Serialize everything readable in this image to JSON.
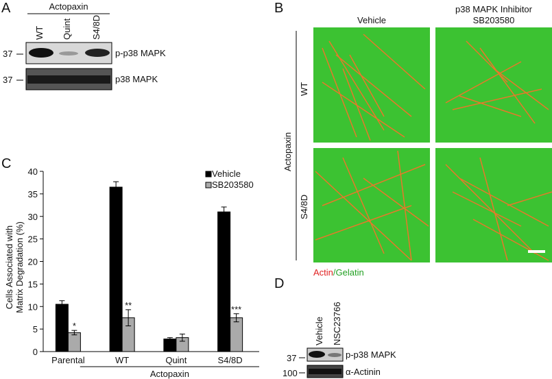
{
  "panel_a": {
    "label": "A",
    "group": "Actopaxin",
    "lanes": [
      "WT",
      "Quint",
      "S4/8D"
    ],
    "rows": [
      {
        "marker": "37",
        "name": "p-p38 MAPK"
      },
      {
        "marker": "37",
        "name": "p38 MAPK"
      }
    ]
  },
  "panel_b": {
    "label": "B",
    "columns": [
      [
        "Vehicle"
      ],
      [
        "p38 MAPK Inhibitor",
        "SB203580"
      ]
    ],
    "rows": [
      "WT",
      "S4/8D"
    ],
    "group": "Actopaxin",
    "legend": [
      "Actin",
      "/Gelatin"
    ]
  },
  "panel_c": {
    "label": "C"
  },
  "panel_d": {
    "label": "D",
    "lanes": [
      "Vehicle",
      "NSC23766"
    ],
    "rows": [
      {
        "marker": "37",
        "name": "p-p38 MAPK"
      },
      {
        "marker": "100",
        "name": "α-Actinin"
      }
    ]
  },
  "chart_data": {
    "type": "bar",
    "ylabel": [
      "Cells Associated with",
      "Matrix Degradation (%)"
    ],
    "categories": [
      "Parental",
      "WT",
      "Quint",
      "S4/8D"
    ],
    "group_label": "Actopaxin",
    "series": [
      {
        "name": "Vehicle",
        "color": "#000000",
        "values": [
          10.5,
          36.5,
          2.8,
          31
        ],
        "errors": [
          0.8,
          1.2,
          0.3,
          1.1
        ],
        "annotations": [
          null,
          null,
          null,
          null
        ]
      },
      {
        "name": "SB203580",
        "color": "#aaaaaa",
        "values": [
          4.2,
          7.5,
          3.1,
          7.5
        ],
        "errors": [
          0.5,
          1.8,
          0.8,
          0.9
        ],
        "annotations": [
          "*",
          "**",
          null,
          "***"
        ]
      }
    ],
    "ylim": [
      0,
      40
    ],
    "yticks": [
      0,
      5,
      10,
      15,
      20,
      25,
      30,
      35,
      40
    ]
  }
}
